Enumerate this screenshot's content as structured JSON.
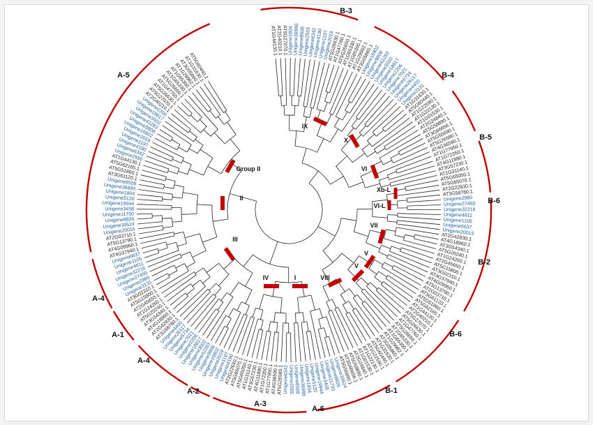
{
  "colors": {
    "arc": "#c00000",
    "marker": "#c00000",
    "branch": "#222222",
    "at_leaf": "#222222",
    "unigene_leaf": "#1f5fa0"
  },
  "subfamilies": [
    {
      "label": "A-5"
    },
    {
      "label": "B-3"
    },
    {
      "label": "B-4"
    },
    {
      "label": "B-5"
    },
    {
      "label": "B-6"
    },
    {
      "label": "B-2"
    },
    {
      "label": "B-6"
    },
    {
      "label": "B-1"
    },
    {
      "label": "A-6"
    },
    {
      "label": "A-3"
    },
    {
      "label": "A-2"
    },
    {
      "label": "A-4"
    },
    {
      "label": "A-1"
    },
    {
      "label": "A-4"
    }
  ],
  "clades": [
    {
      "label": "IX"
    },
    {
      "label": "X"
    },
    {
      "label": "VI"
    },
    {
      "label": "Xb-L"
    },
    {
      "label": "VI-L"
    },
    {
      "label": "VII"
    },
    {
      "label": "V"
    },
    {
      "label": "V"
    },
    {
      "label": "VIII"
    },
    {
      "label": "I"
    },
    {
      "label": "IV"
    },
    {
      "label": "III"
    },
    {
      "label": "II"
    },
    {
      "label": "Group II"
    }
  ],
  "leaves": {
    "at_ids": [
      "AT1G44130.1",
      "AT2G40210.1",
      "AT5G27070.1",
      "AT5G26630.1",
      "AT1G47760.1",
      "AT5G26650.1",
      "AT1G65330.1",
      "AT1G65300.1",
      "AT1G29962.1",
      "AT3G05860.1",
      "AT1G31630.1",
      "AT5G60440.1",
      "AT1G22590.1",
      "AT1G22130.1",
      "AT1G01530.1",
      "AT2G24840.1",
      "AT5G58890.1",
      "AT3G66656.1",
      "AT5G55690.1",
      "AT5G26580.1",
      "AT4G36590.1",
      "AT1G77950.1",
      "AT1G72350.1",
      "AT4G11880.1",
      "AT3G57230.1",
      "AT1G31140.1",
      "AT5G65050.1",
      "AT5G65070.1",
      "AT2G22630.1",
      "AT3G58780.1",
      "AT2G42830.1",
      "AT4G18960.1",
      "AT3G54340.1",
      "AT5G20240.1",
      "AT1G24260.1",
      "AT2G45650.1",
      "AT5G15800.1",
      "AT3G02310.1",
      "AT4G37940.1",
      "AT4G09960.1",
      "AT5G13790.1",
      "AT2G03710.1",
      "AT3G61120.1",
      "AT5G51860.1",
      "AT5G62165.1"
    ],
    "unigene_ids": [
      "Unigene1804",
      "Unigene36990",
      "Unigene8508",
      "Unigene2555",
      "Unigene6342",
      "Unigene4190",
      "Unigene1197",
      "Unigene2019",
      "Unigene16802",
      "Unigene9808",
      "Unigene42283",
      "Unigene3002",
      "Unigene18817",
      "Unigene2206",
      "Unigene7021",
      "Unigene5734",
      "Unigene26117",
      "Unigene4400",
      "Unigene3131",
      "Unigene2980",
      "Unigene27450",
      "Unigene32216",
      "Unigene4811",
      "Unigene1105",
      "Unigene6637",
      "Unigene20015",
      "Unigene39524",
      "Unigene8826",
      "Unigene11700",
      "Unigene3458",
      "Unigene19944",
      "Unigene5120"
    ]
  }
}
